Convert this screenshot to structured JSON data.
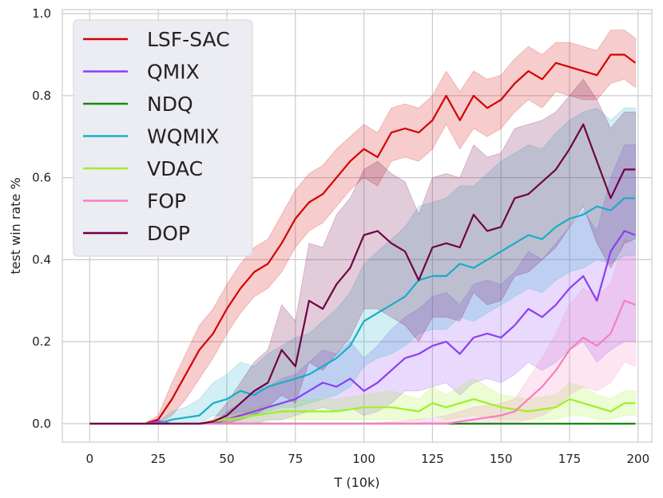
{
  "chart_data": {
    "type": "line",
    "title": "",
    "xlabel": "T (10k)",
    "ylabel": "test win rate %",
    "xlim": [
      -10,
      205
    ],
    "ylim": [
      -0.045,
      1.01
    ],
    "xticks": [
      0,
      25,
      50,
      75,
      100,
      125,
      150,
      175,
      200
    ],
    "yticks": [
      0.0,
      0.2,
      0.4,
      0.6,
      0.8,
      1.0
    ],
    "xtick_labels": [
      "0",
      "25",
      "50",
      "75",
      "100",
      "125",
      "150",
      "175",
      "200"
    ],
    "ytick_labels": [
      "0.0",
      "0.2",
      "0.4",
      "0.6",
      "0.8",
      "1.0"
    ],
    "grid": true,
    "legend_position": "top-left",
    "series": [
      {
        "name": "LSF-SAC",
        "color": "#d40000",
        "x": [
          0,
          20,
          25,
          30,
          35,
          40,
          45,
          50,
          55,
          60,
          65,
          70,
          75,
          80,
          85,
          90,
          95,
          100,
          105,
          110,
          115,
          120,
          125,
          130,
          135,
          140,
          145,
          150,
          155,
          160,
          165,
          170,
          175,
          180,
          185,
          190,
          195,
          199
        ],
        "values": [
          0,
          0,
          0.01,
          0.06,
          0.12,
          0.18,
          0.22,
          0.28,
          0.33,
          0.37,
          0.39,
          0.44,
          0.5,
          0.54,
          0.56,
          0.6,
          0.64,
          0.67,
          0.65,
          0.71,
          0.72,
          0.71,
          0.74,
          0.8,
          0.74,
          0.8,
          0.77,
          0.79,
          0.83,
          0.86,
          0.84,
          0.88,
          0.87,
          0.86,
          0.85,
          0.9,
          0.9,
          0.88
        ],
        "lower": [
          0,
          0,
          0.0,
          0.02,
          0.06,
          0.11,
          0.16,
          0.22,
          0.27,
          0.31,
          0.33,
          0.37,
          0.43,
          0.47,
          0.49,
          0.53,
          0.57,
          0.6,
          0.58,
          0.64,
          0.65,
          0.64,
          0.67,
          0.73,
          0.67,
          0.72,
          0.7,
          0.72,
          0.76,
          0.79,
          0.77,
          0.81,
          0.8,
          0.79,
          0.79,
          0.83,
          0.84,
          0.82
        ],
        "upper": [
          0,
          0,
          0.02,
          0.1,
          0.17,
          0.24,
          0.28,
          0.34,
          0.39,
          0.43,
          0.45,
          0.51,
          0.57,
          0.61,
          0.63,
          0.67,
          0.7,
          0.73,
          0.71,
          0.77,
          0.78,
          0.77,
          0.8,
          0.86,
          0.81,
          0.86,
          0.84,
          0.85,
          0.89,
          0.92,
          0.9,
          0.93,
          0.93,
          0.92,
          0.91,
          0.96,
          0.96,
          0.94
        ]
      },
      {
        "name": "QMIX",
        "color": "#8b3ff5",
        "x": [
          0,
          20,
          25,
          30,
          35,
          40,
          45,
          50,
          55,
          60,
          65,
          70,
          75,
          80,
          85,
          90,
          95,
          100,
          105,
          110,
          115,
          120,
          125,
          130,
          135,
          140,
          145,
          150,
          155,
          160,
          165,
          170,
          175,
          180,
          185,
          190,
          195,
          199
        ],
        "values": [
          0,
          0,
          0.005,
          0.0,
          0.0,
          0.0,
          0.0,
          0.01,
          0.02,
          0.03,
          0.04,
          0.05,
          0.06,
          0.08,
          0.1,
          0.09,
          0.11,
          0.08,
          0.1,
          0.13,
          0.16,
          0.17,
          0.19,
          0.2,
          0.17,
          0.21,
          0.22,
          0.21,
          0.24,
          0.28,
          0.26,
          0.29,
          0.33,
          0.36,
          0.3,
          0.42,
          0.47,
          0.46
        ],
        "lower": [
          0,
          0,
          0,
          0,
          0,
          0,
          0,
          0.0,
          0.0,
          0.0,
          0.01,
          0.01,
          0.02,
          0.03,
          0.04,
          0.03,
          0.04,
          0.02,
          0.03,
          0.05,
          0.08,
          0.08,
          0.09,
          0.1,
          0.07,
          0.1,
          0.11,
          0.1,
          0.12,
          0.15,
          0.13,
          0.15,
          0.18,
          0.2,
          0.15,
          0.18,
          0.2,
          0.2
        ],
        "upper": [
          0,
          0,
          0.01,
          0.0,
          0.0,
          0.0,
          0.0,
          0.03,
          0.05,
          0.08,
          0.09,
          0.11,
          0.12,
          0.15,
          0.18,
          0.17,
          0.2,
          0.16,
          0.19,
          0.23,
          0.26,
          0.28,
          0.31,
          0.32,
          0.29,
          0.34,
          0.35,
          0.34,
          0.37,
          0.42,
          0.4,
          0.44,
          0.48,
          0.52,
          0.47,
          0.6,
          0.68,
          0.68
        ]
      },
      {
        "name": "NDQ",
        "color": "#138a13",
        "x": [
          0,
          50,
          100,
          150,
          199
        ],
        "values": [
          0,
          0,
          0,
          0,
          0
        ],
        "lower": [
          0,
          0,
          0,
          0,
          0
        ],
        "upper": [
          0,
          0,
          0,
          0,
          0
        ]
      },
      {
        "name": "WQMIX",
        "color": "#17aec6",
        "x": [
          0,
          20,
          25,
          30,
          35,
          40,
          45,
          50,
          55,
          60,
          65,
          70,
          75,
          80,
          85,
          90,
          95,
          100,
          105,
          110,
          115,
          120,
          125,
          130,
          135,
          140,
          145,
          150,
          155,
          160,
          165,
          170,
          175,
          180,
          185,
          190,
          195,
          199
        ],
        "values": [
          0,
          0,
          0.0,
          0.01,
          0.015,
          0.02,
          0.05,
          0.06,
          0.08,
          0.07,
          0.09,
          0.1,
          0.11,
          0.12,
          0.14,
          0.16,
          0.19,
          0.25,
          0.27,
          0.29,
          0.31,
          0.35,
          0.36,
          0.36,
          0.39,
          0.38,
          0.4,
          0.42,
          0.44,
          0.46,
          0.45,
          0.48,
          0.5,
          0.51,
          0.53,
          0.52,
          0.55,
          0.55
        ],
        "lower": [
          0,
          0,
          0,
          0.0,
          0.0,
          0.0,
          0.02,
          0.02,
          0.03,
          0.02,
          0.03,
          0.04,
          0.04,
          0.05,
          0.06,
          0.07,
          0.09,
          0.14,
          0.16,
          0.17,
          0.19,
          0.22,
          0.23,
          0.23,
          0.26,
          0.25,
          0.27,
          0.29,
          0.31,
          0.33,
          0.32,
          0.35,
          0.37,
          0.38,
          0.4,
          0.39,
          0.41,
          0.41
        ],
        "upper": [
          0,
          0,
          0.005,
          0.03,
          0.04,
          0.06,
          0.1,
          0.12,
          0.15,
          0.14,
          0.17,
          0.19,
          0.21,
          0.22,
          0.25,
          0.28,
          0.32,
          0.39,
          0.42,
          0.45,
          0.48,
          0.53,
          0.54,
          0.55,
          0.58,
          0.58,
          0.61,
          0.64,
          0.66,
          0.68,
          0.67,
          0.71,
          0.74,
          0.76,
          0.77,
          0.74,
          0.77,
          0.77
        ]
      },
      {
        "name": "VDAC",
        "color": "#9ef028",
        "x": [
          0,
          40,
          50,
          60,
          70,
          80,
          90,
          100,
          110,
          120,
          125,
          130,
          140,
          150,
          160,
          170,
          175,
          180,
          185,
          190,
          195,
          199
        ],
        "values": [
          0,
          0,
          0.01,
          0.02,
          0.03,
          0.03,
          0.03,
          0.04,
          0.04,
          0.03,
          0.05,
          0.04,
          0.06,
          0.04,
          0.03,
          0.04,
          0.06,
          0.05,
          0.04,
          0.03,
          0.05,
          0.05
        ],
        "lower": [
          0,
          0,
          0.0,
          0.0,
          0.01,
          0.01,
          0.01,
          0.01,
          0.01,
          0.01,
          0.02,
          0.01,
          0.02,
          0.01,
          0.01,
          0.01,
          0.02,
          0.02,
          0.01,
          0.01,
          0.02,
          0.02
        ],
        "upper": [
          0,
          0,
          0.02,
          0.04,
          0.05,
          0.06,
          0.06,
          0.07,
          0.08,
          0.06,
          0.09,
          0.07,
          0.11,
          0.07,
          0.06,
          0.07,
          0.1,
          0.09,
          0.07,
          0.06,
          0.08,
          0.08
        ]
      },
      {
        "name": "FOP",
        "color": "#f57ec0",
        "x": [
          0,
          100,
          120,
          130,
          140,
          150,
          155,
          160,
          165,
          170,
          175,
          180,
          185,
          190,
          195,
          199
        ],
        "values": [
          0,
          0,
          0.0,
          0.0,
          0.01,
          0.02,
          0.03,
          0.06,
          0.09,
          0.13,
          0.18,
          0.21,
          0.19,
          0.22,
          0.3,
          0.29
        ],
        "lower": [
          0,
          0,
          0,
          0,
          0,
          0,
          0,
          0.01,
          0.02,
          0.04,
          0.07,
          0.09,
          0.08,
          0.1,
          0.15,
          0.14
        ],
        "upper": [
          0,
          0,
          0.01,
          0.02,
          0.04,
          0.05,
          0.06,
          0.11,
          0.16,
          0.22,
          0.29,
          0.33,
          0.31,
          0.34,
          0.45,
          0.44
        ]
      },
      {
        "name": "DOP",
        "color": "#700045",
        "x": [
          0,
          40,
          45,
          50,
          55,
          60,
          65,
          70,
          75,
          80,
          85,
          90,
          95,
          100,
          105,
          110,
          115,
          120,
          125,
          130,
          135,
          140,
          145,
          150,
          155,
          160,
          165,
          170,
          175,
          180,
          185,
          190,
          195,
          199
        ],
        "values": [
          0,
          0,
          0.005,
          0.02,
          0.05,
          0.08,
          0.1,
          0.18,
          0.14,
          0.3,
          0.28,
          0.34,
          0.38,
          0.46,
          0.47,
          0.44,
          0.42,
          0.35,
          0.43,
          0.44,
          0.43,
          0.51,
          0.47,
          0.48,
          0.55,
          0.56,
          0.59,
          0.62,
          0.67,
          0.73,
          0.64,
          0.55,
          0.62,
          0.62
        ],
        "lower": [
          0,
          0,
          0.0,
          0.0,
          0.01,
          0.02,
          0.04,
          0.07,
          0.05,
          0.15,
          0.13,
          0.17,
          0.21,
          0.28,
          0.28,
          0.26,
          0.24,
          0.2,
          0.26,
          0.26,
          0.25,
          0.32,
          0.29,
          0.3,
          0.36,
          0.37,
          0.4,
          0.43,
          0.48,
          0.53,
          0.44,
          0.38,
          0.44,
          0.45
        ],
        "upper": [
          0,
          0,
          0.01,
          0.05,
          0.1,
          0.15,
          0.18,
          0.29,
          0.25,
          0.44,
          0.43,
          0.51,
          0.55,
          0.62,
          0.64,
          0.61,
          0.59,
          0.51,
          0.6,
          0.61,
          0.6,
          0.68,
          0.65,
          0.66,
          0.72,
          0.73,
          0.74,
          0.76,
          0.8,
          0.84,
          0.79,
          0.72,
          0.76,
          0.76
        ]
      }
    ]
  }
}
